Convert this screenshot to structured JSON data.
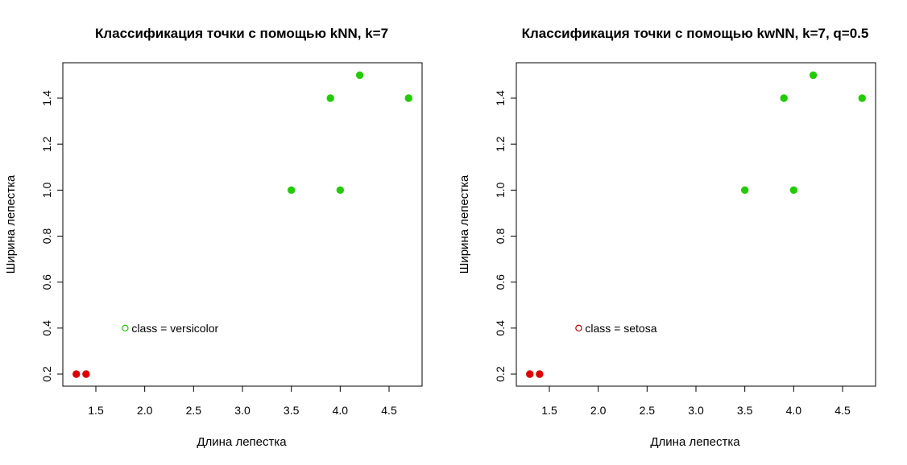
{
  "chart_data": [
    {
      "type": "scatter",
      "title": "Классификация точки с помощью kNN, k=7",
      "xlabel": "Длина лепестка",
      "ylabel": "Ширина лепестка",
      "xlim": [
        1.25,
        4.75
      ],
      "ylim": [
        0.2,
        1.5
      ],
      "xticks": [
        1.5,
        2.0,
        2.5,
        3.0,
        3.5,
        4.0,
        4.5
      ],
      "xtick_labels": [
        "1.5",
        "2.0",
        "2.5",
        "3.0",
        "3.5",
        "4.0",
        "4.5"
      ],
      "yticks": [
        0.2,
        0.4,
        0.6,
        0.8,
        1.0,
        1.2,
        1.4
      ],
      "ytick_labels": [
        "0.2",
        "0.4",
        "0.6",
        "0.8",
        "1.0",
        "1.2",
        "1.4"
      ],
      "grid": false,
      "points": [
        {
          "x": 1.3,
          "y": 0.2,
          "color": "#e00000",
          "filled": true
        },
        {
          "x": 1.4,
          "y": 0.2,
          "color": "#e00000",
          "filled": true
        },
        {
          "x": 3.5,
          "y": 1.0,
          "color": "#22cc00",
          "filled": true
        },
        {
          "x": 4.0,
          "y": 1.0,
          "color": "#22cc00",
          "filled": true
        },
        {
          "x": 3.9,
          "y": 1.4,
          "color": "#22cc00",
          "filled": true
        },
        {
          "x": 4.7,
          "y": 1.4,
          "color": "#22cc00",
          "filled": true
        },
        {
          "x": 4.2,
          "y": 1.5,
          "color": "#22cc00",
          "filled": true
        }
      ],
      "query_point": {
        "x": 1.8,
        "y": 0.4,
        "color": "#22cc00",
        "filled": false
      },
      "annotation": "class = versicolor"
    },
    {
      "type": "scatter",
      "title": "Классификация точки с помощью kwNN, k=7, q=0.5",
      "xlabel": "Длина лепестка",
      "ylabel": "Ширина лепестка",
      "xlim": [
        1.25,
        4.75
      ],
      "ylim": [
        0.2,
        1.5
      ],
      "xticks": [
        1.5,
        2.0,
        2.5,
        3.0,
        3.5,
        4.0,
        4.5
      ],
      "xtick_labels": [
        "1.5",
        "2.0",
        "2.5",
        "3.0",
        "3.5",
        "4.0",
        "4.5"
      ],
      "yticks": [
        0.2,
        0.4,
        0.6,
        0.8,
        1.0,
        1.2,
        1.4
      ],
      "ytick_labels": [
        "0.2",
        "0.4",
        "0.6",
        "0.8",
        "1.0",
        "1.2",
        "1.4"
      ],
      "grid": false,
      "points": [
        {
          "x": 1.3,
          "y": 0.2,
          "color": "#e00000",
          "filled": true
        },
        {
          "x": 1.4,
          "y": 0.2,
          "color": "#e00000",
          "filled": true
        },
        {
          "x": 3.5,
          "y": 1.0,
          "color": "#22cc00",
          "filled": true
        },
        {
          "x": 4.0,
          "y": 1.0,
          "color": "#22cc00",
          "filled": true
        },
        {
          "x": 3.9,
          "y": 1.4,
          "color": "#22cc00",
          "filled": true
        },
        {
          "x": 4.7,
          "y": 1.4,
          "color": "#22cc00",
          "filled": true
        },
        {
          "x": 4.2,
          "y": 1.5,
          "color": "#22cc00",
          "filled": true
        }
      ],
      "query_point": {
        "x": 1.8,
        "y": 0.4,
        "color": "#cc0000",
        "filled": false
      },
      "annotation": "class = setosa"
    }
  ]
}
